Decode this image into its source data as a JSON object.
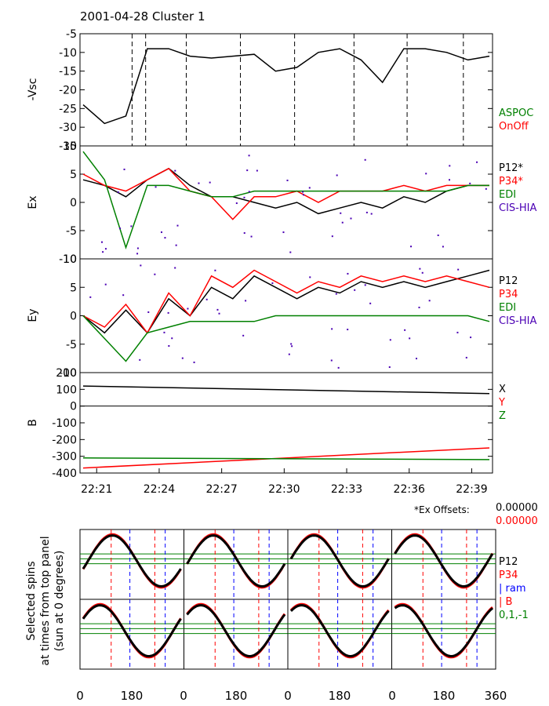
{
  "title": "2001-04-28 Cluster 1",
  "time_labels": [
    "22:21",
    "22:24",
    "22:27",
    "22:30",
    "22:33",
    "22:36",
    "22:39"
  ],
  "panels": [
    {
      "id": "vsc",
      "ylabel": "-Vsc",
      "ticks": [
        "-5",
        "-10",
        "-15",
        "-20",
        "-25",
        "-30",
        "-35"
      ],
      "legend": [
        {
          "text": "ASPOC",
          "color": "#008000"
        },
        {
          "text": "OnOff",
          "color": "#ff0000"
        }
      ]
    },
    {
      "id": "ex",
      "ylabel": "Ex",
      "ticks": [
        "10",
        "5",
        "0",
        "-5",
        "-10"
      ],
      "legend": [
        {
          "text": "P12*",
          "color": "#000000"
        },
        {
          "text": "P34*",
          "color": "#ff0000"
        },
        {
          "text": "EDI",
          "color": "#008000"
        },
        {
          "text": "CIS-HIA",
          "color": "#4b00b4"
        }
      ]
    },
    {
      "id": "ey",
      "ylabel": "Ey",
      "ticks": [
        "10",
        "5",
        "0",
        "-5",
        "-10"
      ],
      "legend": [
        {
          "text": "P12",
          "color": "#000000"
        },
        {
          "text": "P34",
          "color": "#ff0000"
        },
        {
          "text": "EDI",
          "color": "#008000"
        },
        {
          "text": "CIS-HIA",
          "color": "#4b00b4"
        }
      ]
    },
    {
      "id": "b",
      "ylabel": "B",
      "ticks": [
        "200",
        "100",
        "0",
        "-100",
        "-200",
        "-300",
        "-400"
      ],
      "legend": [
        {
          "text": "X",
          "color": "#000000"
        },
        {
          "text": "Y",
          "color": "#ff0000"
        },
        {
          "text": "Z",
          "color": "#008000"
        }
      ]
    }
  ],
  "offsets": {
    "label": "*Ex Offsets:",
    "black_value": "0.00000",
    "red_value": "0.00000"
  },
  "spins": {
    "ylabel_lines": [
      "Selected spins",
      "at times from top panel",
      "(sun at 0 degrees)"
    ],
    "x_labels": [
      "0",
      "180",
      "0",
      "180",
      "0",
      "180",
      "0",
      "180",
      "360"
    ],
    "legend": [
      {
        "text": "P12",
        "color": "#000000"
      },
      {
        "text": "P34",
        "color": "#ff0000"
      },
      {
        "text": "| ram",
        "color": "#0000ff"
      },
      {
        "text": "| B",
        "color": "#ff0000"
      },
      {
        "text": "0,1,-1",
        "color": "#008000"
      }
    ]
  },
  "chart_data": [
    {
      "type": "line",
      "title": "2001-04-28 Cluster 1",
      "ylabel": "-Vsc",
      "ylim": [
        -35,
        -5
      ],
      "x": [
        "22:21",
        "22:22",
        "22:23",
        "22:24",
        "22:25",
        "22:26",
        "22:27",
        "22:28",
        "22:29",
        "22:30",
        "22:31",
        "22:32",
        "22:33",
        "22:34",
        "22:35",
        "22:36",
        "22:37",
        "22:38",
        "22:39",
        "22:40"
      ],
      "series": [
        {
          "color": "#000000",
          "values": [
            -24,
            -29,
            -27,
            -9,
            -9,
            -11,
            -11.5,
            -11,
            -10.5,
            -15,
            -14,
            -10,
            -9,
            -12,
            -18,
            -9,
            -9,
            -10,
            -12,
            -11
          ]
        }
      ]
    },
    {
      "type": "line",
      "ylabel": "Ex",
      "ylim": [
        -10,
        10
      ],
      "x": [
        "22:21",
        "22:22",
        "22:23",
        "22:24",
        "22:25",
        "22:26",
        "22:27",
        "22:28",
        "22:29",
        "22:30",
        "22:31",
        "22:32",
        "22:33",
        "22:34",
        "22:35",
        "22:36",
        "22:37",
        "22:38",
        "22:39",
        "22:40"
      ],
      "series": [
        {
          "name": "P12*",
          "color": "#000000",
          "values": [
            4,
            3,
            1,
            4,
            6,
            3,
            1,
            1,
            0,
            -1,
            0,
            -2,
            -1,
            0,
            -1,
            1,
            0,
            2,
            3,
            3
          ]
        },
        {
          "name": "P34*",
          "color": "#ff0000",
          "values": [
            5,
            3,
            2,
            4,
            6,
            2,
            1,
            -3,
            1,
            1,
            2,
            0,
            2,
            2,
            2,
            3,
            2,
            3,
            3,
            3
          ]
        },
        {
          "name": "EDI",
          "color": "#008000",
          "values": [
            9,
            4,
            -8,
            3,
            3,
            2,
            1,
            1,
            2,
            2,
            2,
            2,
            2,
            2,
            2,
            2,
            2,
            2,
            3,
            3
          ]
        }
      ]
    },
    {
      "type": "line",
      "ylabel": "Ey",
      "ylim": [
        -10,
        10
      ],
      "x": [
        "22:21",
        "22:22",
        "22:23",
        "22:24",
        "22:25",
        "22:26",
        "22:27",
        "22:28",
        "22:29",
        "22:30",
        "22:31",
        "22:32",
        "22:33",
        "22:34",
        "22:35",
        "22:36",
        "22:37",
        "22:38",
        "22:39",
        "22:40"
      ],
      "series": [
        {
          "name": "P12",
          "color": "#000000",
          "values": [
            0,
            -3,
            1,
            -3,
            3,
            0,
            5,
            3,
            7,
            5,
            3,
            5,
            4,
            6,
            5,
            6,
            5,
            6,
            7,
            8
          ]
        },
        {
          "name": "P34",
          "color": "#ff0000",
          "values": [
            0,
            -2,
            2,
            -3,
            4,
            0,
            7,
            5,
            8,
            6,
            4,
            6,
            5,
            7,
            6,
            7,
            6,
            7,
            6,
            5
          ]
        },
        {
          "name": "EDI",
          "color": "#008000",
          "values": [
            0,
            -4,
            -8,
            -3,
            -2,
            -1,
            -1,
            -1,
            -1,
            0,
            0,
            0,
            0,
            0,
            0,
            0,
            0,
            0,
            0,
            -1
          ]
        }
      ]
    },
    {
      "type": "line",
      "ylabel": "B",
      "ylim": [
        -400,
        200
      ],
      "x": [
        "22:21",
        "22:40"
      ],
      "series": [
        {
          "name": "X",
          "color": "#000000",
          "values": [
            120,
            75
          ]
        },
        {
          "name": "Y",
          "color": "#ff0000",
          "values": [
            -370,
            -250
          ]
        },
        {
          "name": "Z",
          "color": "#008000",
          "values": [
            -310,
            -320
          ]
        }
      ]
    }
  ]
}
